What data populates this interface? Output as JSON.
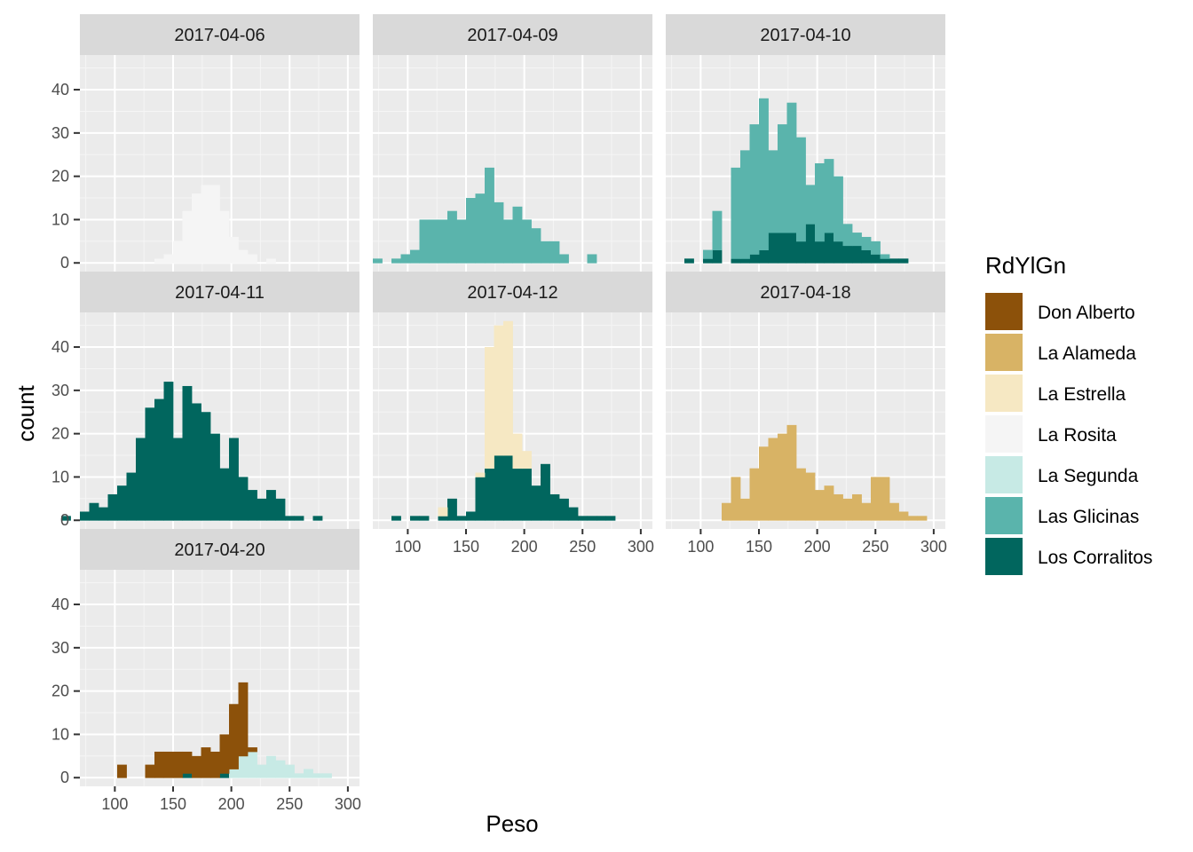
{
  "chart_data": {
    "type": "bar",
    "subtype": "faceted stacked histogram",
    "xlabel": "Peso",
    "ylabel": "count",
    "xlim": [
      70,
      310
    ],
    "ylim": [
      -2,
      48
    ],
    "x_ticks": [
      100,
      150,
      200,
      250,
      300
    ],
    "y_ticks": [
      0,
      10,
      20,
      30,
      40
    ],
    "bin_width": 8,
    "grid": true,
    "legend": {
      "title": "RdYlGn",
      "position": "right",
      "entries": [
        {
          "name": "Don Alberto",
          "color": "#8C510A"
        },
        {
          "name": "La Alameda",
          "color": "#D8B365"
        },
        {
          "name": "La Estrella",
          "color": "#F6E8C3"
        },
        {
          "name": "La Rosita",
          "color": "#F5F5F5"
        },
        {
          "name": "La Segunda",
          "color": "#C7EAE5"
        },
        {
          "name": "Las Glicinas",
          "color": "#5AB4AC"
        },
        {
          "name": "Los Corralitos",
          "color": "#01665E"
        }
      ]
    },
    "facets": [
      {
        "label": "2017-04-06",
        "series": [
          {
            "name": "La Rosita",
            "x": [
              138,
              146,
              154,
              162,
              170,
              178,
              186,
              194,
              202,
              210,
              218,
              234
            ],
            "counts": [
              1,
              2,
              5,
              12,
              16,
              18,
              18,
              12,
              6,
              3,
              2,
              1
            ]
          }
        ]
      },
      {
        "label": "2017-04-09",
        "series": [
          {
            "name": "Las Glicinas",
            "x": [
              74,
              90,
              98,
              106,
              114,
              122,
              130,
              138,
              146,
              154,
              162,
              170,
              178,
              186,
              194,
              202,
              210,
              218,
              226,
              234,
              242,
              250,
              258
            ],
            "counts": [
              1,
              1,
              2,
              3,
              10,
              10,
              10,
              12,
              10,
              15,
              16,
              22,
              14,
              10,
              13,
              10,
              8,
              5,
              5,
              2,
              0,
              0,
              2
            ]
          }
        ]
      },
      {
        "label": "2017-04-10",
        "series": [
          {
            "name": "Los Corralitos",
            "x": [
              90,
              106,
              114,
              130,
              138,
              146,
              154,
              162,
              170,
              178,
              186,
              194,
              202,
              210,
              218,
              226,
              234,
              242,
              250,
              258,
              266,
              274
            ],
            "counts": [
              1,
              1,
              3,
              1,
              1,
              2,
              3,
              7,
              7,
              7,
              5,
              9,
              5,
              7,
              5,
              4,
              4,
              3,
              2,
              1,
              1,
              1
            ]
          },
          {
            "name": "Las Glicinas",
            "x": [
              90,
              106,
              114,
              130,
              138,
              146,
              154,
              162,
              170,
              178,
              186,
              194,
              202,
              210,
              218,
              226,
              234,
              242,
              250,
              258,
              266,
              274
            ],
            "counts": [
              0,
              2,
              9,
              21,
              25,
              30,
              35,
              19,
              25,
              30,
              24,
              9,
              18,
              17,
              15,
              5,
              3,
              3,
              3,
              1,
              0,
              0
            ]
          }
        ]
      },
      {
        "label": "2017-04-11",
        "series": [
          {
            "name": "Los Corralitos",
            "x": [
              58,
              74,
              82,
              90,
              98,
              106,
              114,
              122,
              130,
              138,
              146,
              154,
              162,
              170,
              178,
              186,
              194,
              202,
              210,
              218,
              226,
              234,
              242,
              250,
              258,
              274
            ],
            "counts": [
              1,
              2,
              4,
              3,
              6,
              8,
              11,
              19,
              26,
              28,
              32,
              19,
              31,
              27,
              25,
              20,
              12,
              19,
              10,
              7,
              5,
              7,
              5,
              1,
              1,
              1
            ]
          }
        ]
      },
      {
        "label": "2017-04-12",
        "series": [
          {
            "name": "Los Corralitos",
            "x": [
              90,
              106,
              114,
              130,
              138,
              146,
              154,
              162,
              170,
              178,
              186,
              194,
              202,
              210,
              218,
              226,
              234,
              242,
              250,
              258,
              266,
              274
            ],
            "counts": [
              1,
              1,
              1,
              1,
              5,
              1,
              2,
              10,
              12,
              15,
              15,
              12,
              12,
              8,
              13,
              6,
              5,
              3,
              1,
              1,
              1,
              1
            ]
          },
          {
            "name": "La Estrella",
            "x": [
              90,
              106,
              114,
              130,
              138,
              146,
              154,
              162,
              170,
              178,
              186,
              194,
              202,
              210,
              218,
              226,
              234,
              242,
              250,
              258,
              266,
              274
            ],
            "counts": [
              0,
              0,
              0,
              2,
              0,
              0,
              0,
              1,
              28,
              30,
              31,
              8,
              4,
              0,
              0,
              0,
              0,
              0,
              0,
              0,
              0,
              0
            ]
          }
        ]
      },
      {
        "label": "2017-04-18",
        "series": [
          {
            "name": "La Alameda",
            "x": [
              122,
              130,
              138,
              146,
              154,
              162,
              170,
              178,
              186,
              194,
              202,
              210,
              218,
              226,
              234,
              242,
              250,
              258,
              266,
              274,
              282,
              290
            ],
            "counts": [
              4,
              10,
              5,
              12,
              17,
              19,
              20,
              22,
              12,
              11,
              7,
              8,
              6,
              5,
              6,
              4,
              10,
              10,
              4,
              2,
              1,
              1
            ]
          }
        ]
      },
      {
        "label": "2017-04-20",
        "series": [
          {
            "name": "Los Corralitos",
            "x": [
              98,
              106,
              114,
              130,
              138,
              146,
              154,
              162,
              170,
              178,
              186,
              194,
              202,
              210,
              218,
              226,
              234,
              242,
              250,
              258,
              266,
              274,
              282
            ],
            "counts": [
              0,
              0,
              0,
              0,
              0,
              0,
              0,
              1,
              0,
              0,
              0,
              1,
              0,
              0,
              0,
              0,
              0,
              0,
              0,
              0,
              0,
              0,
              0
            ]
          },
          {
            "name": "La Segunda",
            "x": [
              98,
              106,
              114,
              130,
              138,
              146,
              154,
              162,
              170,
              178,
              186,
              194,
              202,
              210,
              218,
              226,
              234,
              242,
              250,
              258,
              266,
              274,
              282
            ],
            "counts": [
              0,
              0,
              0,
              0,
              0,
              0,
              0,
              0,
              0,
              0,
              0,
              0,
              2,
              5,
              6,
              3,
              5,
              4,
              3,
              1,
              2,
              1,
              1
            ]
          },
          {
            "name": "Don Alberto",
            "x": [
              98,
              106,
              114,
              130,
              138,
              146,
              154,
              162,
              170,
              178,
              186,
              194,
              202,
              210,
              218,
              226,
              234,
              242,
              250,
              258,
              266,
              274,
              282
            ],
            "counts": [
              0,
              3,
              0,
              3,
              6,
              6,
              6,
              5,
              5,
              7,
              6,
              9,
              15,
              17,
              1,
              0,
              0,
              0,
              0,
              0,
              0,
              0,
              0
            ]
          }
        ]
      }
    ]
  }
}
